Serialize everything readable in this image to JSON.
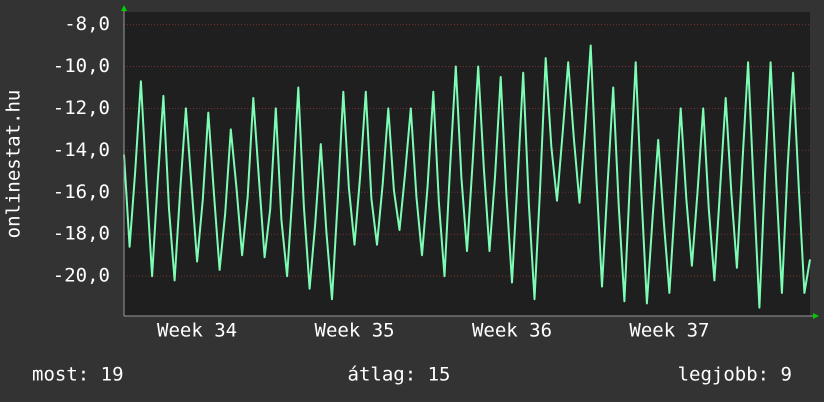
{
  "chart_data": {
    "type": "line",
    "y_label": "onlinestat.hu",
    "color": "#7dfcb4",
    "values": [
      -14.2,
      -18.6,
      -15.0,
      -10.7,
      -15.6,
      -20.0,
      -15.5,
      -11.4,
      -16.8,
      -20.2,
      -15.9,
      -12.0,
      -15.7,
      -19.3,
      -16.4,
      -12.2,
      -16.1,
      -19.7,
      -17.0,
      -13.0,
      -15.8,
      -19.0,
      -16.2,
      -11.5,
      -15.4,
      -19.1,
      -16.8,
      -12.0,
      -17.3,
      -20.0,
      -15.9,
      -11.0,
      -16.7,
      -20.6,
      -17.5,
      -13.7,
      -17.9,
      -21.1,
      -16.4,
      -11.2,
      -15.8,
      -18.5,
      -15.2,
      -11.2,
      -16.3,
      -18.5,
      -15.6,
      -12.0,
      -15.9,
      -17.8,
      -15.1,
      -12.0,
      -16.2,
      -19.0,
      -15.7,
      -11.2,
      -16.5,
      -20.0,
      -14.8,
      -10.0,
      -15.3,
      -18.8,
      -14.6,
      -10.0,
      -14.9,
      -18.8,
      -15.2,
      -10.5,
      -16.1,
      -20.3,
      -15.4,
      -10.3,
      -16.6,
      -21.1,
      -15.8,
      -9.6,
      -13.8,
      -16.4,
      -13.2,
      -9.8,
      -13.4,
      -16.5,
      -13.0,
      -9.0,
      -15.2,
      -20.5,
      -15.6,
      -11.0,
      -16.7,
      -21.2,
      -15.3,
      -9.8,
      -16.0,
      -21.3,
      -17.2,
      -13.5,
      -17.4,
      -20.8,
      -16.5,
      -12.0,
      -16.3,
      -19.5,
      -16.0,
      -12.0,
      -16.8,
      -20.2,
      -15.9,
      -11.5,
      -16.0,
      -19.6,
      -14.5,
      -9.8,
      -15.9,
      -21.5,
      -15.2,
      -9.8,
      -15.6,
      -20.8,
      -14.9,
      -10.3,
      -15.8,
      -20.8,
      -19.2
    ],
    "xlim": [
      0,
      122
    ],
    "xticks": [
      {
        "value": 13,
        "label": "Week 34"
      },
      {
        "value": 41,
        "label": "Week 35"
      },
      {
        "value": 69,
        "label": "Week 36"
      },
      {
        "value": 97,
        "label": "Week 37"
      }
    ],
    "ylim": [
      -21.9,
      -7.4
    ],
    "yticks": [
      {
        "value": -8,
        "label": "-8,0"
      },
      {
        "value": -10,
        "label": "-10,0"
      },
      {
        "value": -12,
        "label": "-12,0"
      },
      {
        "value": -14,
        "label": "-14,0"
      },
      {
        "value": -16,
        "label": "-16,0"
      },
      {
        "value": -18,
        "label": "-18,0"
      },
      {
        "value": -20,
        "label": "-20,0"
      }
    ],
    "grid": true,
    "stats": [
      "most: 19",
      "átlag: 15",
      "legjobb: 9"
    ]
  }
}
